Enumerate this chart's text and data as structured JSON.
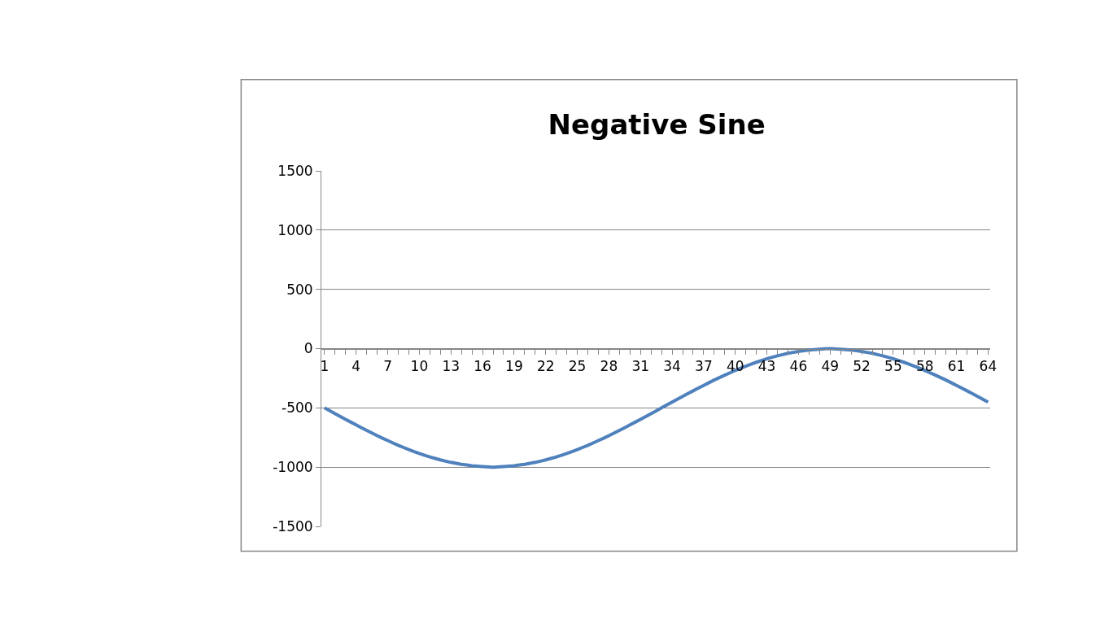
{
  "chart_data": {
    "type": "line",
    "title": "Negative Sine",
    "categories": [
      "1",
      null,
      null,
      "4",
      null,
      null,
      "7",
      null,
      null,
      "10",
      null,
      null,
      "13",
      null,
      null,
      "16",
      null,
      null,
      "19",
      null,
      null,
      "22",
      null,
      null,
      "25",
      null,
      null,
      "28",
      null,
      null,
      "31",
      null,
      null,
      "34",
      null,
      null,
      "37",
      null,
      null,
      "40",
      null,
      null,
      "43",
      null,
      null,
      "46",
      null,
      null,
      "49",
      null,
      null,
      "52",
      null,
      null,
      "55",
      null,
      null,
      "58",
      null,
      null,
      "61",
      null,
      null,
      "64"
    ],
    "series": [
      {
        "color": "#4f81bd",
        "values": [
          -500,
          -549,
          -597,
          -644,
          -690,
          -735,
          -776,
          -816,
          -852,
          -885,
          -914,
          -939,
          -960,
          -976,
          -988,
          -995,
          -1000,
          -995,
          -988,
          -976,
          -960,
          -939,
          -914,
          -885,
          -852,
          -816,
          -776,
          -735,
          -690,
          -644,
          -597,
          -549,
          -500,
          -451,
          -403,
          -356,
          -310,
          -265,
          -224,
          -184,
          -148,
          -115,
          -86,
          -61,
          -40,
          -24,
          -12,
          -5,
          0,
          -5,
          -12,
          -24,
          -40,
          -61,
          -86,
          -115,
          -148,
          -184,
          -224,
          -265,
          -310,
          -356,
          -403,
          -451
        ]
      }
    ],
    "ylim": [
      -1500,
      1500
    ],
    "yticks": [
      -1500,
      -1000,
      -500,
      0,
      500,
      1000,
      1500
    ],
    "grid": "y",
    "marker": "none",
    "line_style": "solid"
  }
}
